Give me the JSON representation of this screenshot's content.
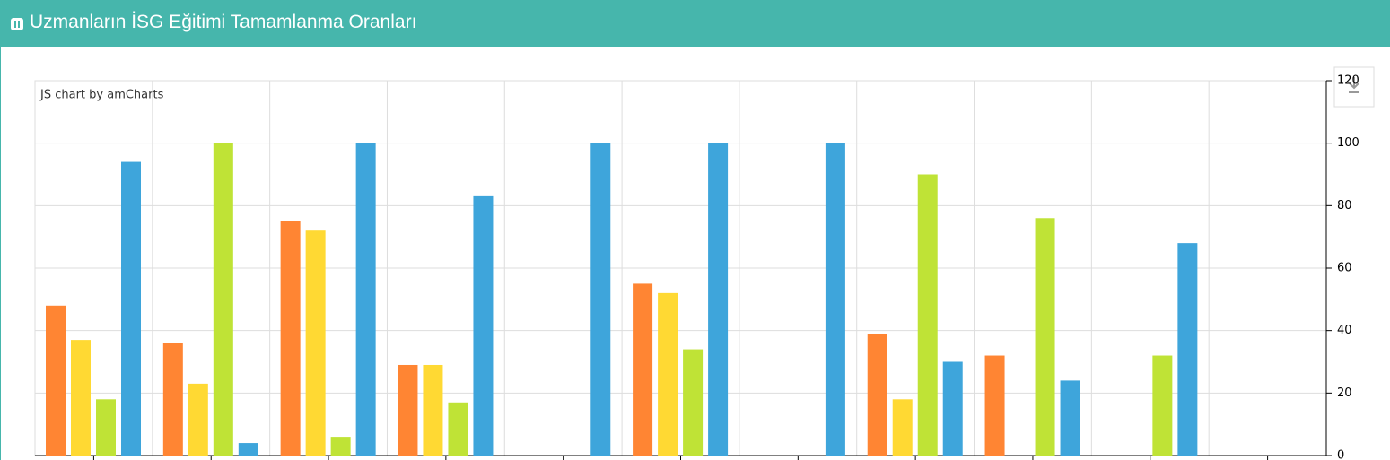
{
  "header": {
    "title": "Uzmanların İSG Eğitimi Tamamlanma Oranları"
  },
  "chart_data": {
    "type": "bar",
    "credit": "JS chart by amCharts",
    "categories": [
      null,
      null,
      null,
      null,
      null,
      null,
      null,
      null,
      null,
      null,
      null
    ],
    "series": [
      {
        "color": "#ff8533",
        "values": [
          48,
          36,
          75,
          29,
          0,
          55,
          0,
          39,
          32,
          0,
          0
        ]
      },
      {
        "color": "#ffd933",
        "values": [
          37,
          23,
          72,
          29,
          0,
          52,
          0,
          18,
          0,
          0,
          0
        ]
      },
      {
        "color": "#bfe336",
        "values": [
          18,
          100,
          6,
          17,
          0,
          34,
          0,
          90,
          76,
          32,
          0
        ]
      },
      {
        "color": "#3ea5db",
        "values": [
          94,
          4,
          100,
          83,
          100,
          100,
          100,
          30,
          24,
          68,
          0
        ]
      }
    ],
    "ylim": [
      0,
      120
    ],
    "yticks": [
      0,
      20,
      40,
      60,
      80,
      100,
      120
    ],
    "grid": true
  }
}
